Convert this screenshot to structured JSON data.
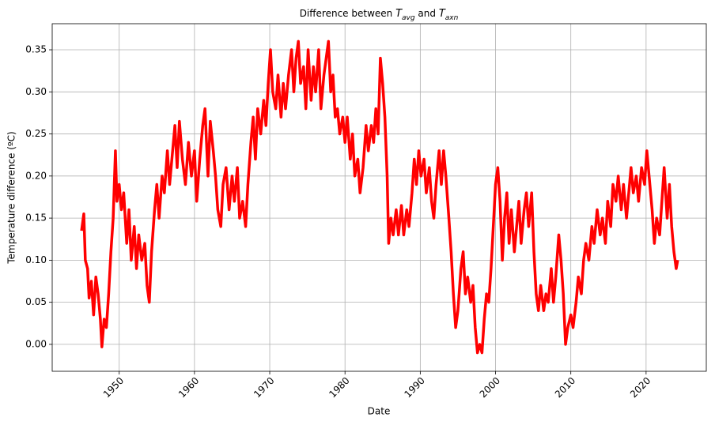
{
  "chart_data": {
    "type": "line",
    "title": [
      "Difference between ",
      {
        "text": "T",
        "sub": "avg"
      },
      " and ",
      {
        "text": "T",
        "sub": "axn"
      }
    ],
    "xlabel": "Date",
    "ylabel": "Temperature difference (ºC)",
    "color": "#ff0000",
    "grid": true,
    "xlim": [
      1941.1,
      2028.0
    ],
    "ylim": [
      -0.032,
      0.381
    ],
    "xticks": [
      1950,
      1960,
      1970,
      1980,
      1990,
      2000,
      2010,
      2020
    ],
    "yticks": [
      {
        "value": 0,
        "label": "0.00"
      },
      {
        "value": 0.05,
        "label": "0.05"
      },
      {
        "value": 0.1,
        "label": "0.10"
      },
      {
        "value": 0.15,
        "label": "0.15"
      },
      {
        "value": 0.2,
        "label": "0.20"
      },
      {
        "value": 0.25,
        "label": "0.25"
      },
      {
        "value": 0.3,
        "label": "0.30"
      },
      {
        "value": 0.35,
        "label": "0.35"
      }
    ],
    "x": [
      1945.0,
      1945.3,
      1945.5,
      1945.8,
      1946.0,
      1946.3,
      1946.6,
      1946.9,
      1947.2,
      1947.5,
      1947.7,
      1948.0,
      1948.3,
      1948.6,
      1948.9,
      1949.2,
      1949.5,
      1949.7,
      1950.0,
      1950.3,
      1950.6,
      1951.0,
      1951.3,
      1951.6,
      1952.0,
      1952.3,
      1952.6,
      1953.0,
      1953.4,
      1953.7,
      1954.0,
      1954.3,
      1954.7,
      1955.0,
      1955.3,
      1955.7,
      1956.0,
      1956.4,
      1956.7,
      1957.0,
      1957.4,
      1957.7,
      1958.0,
      1958.4,
      1958.8,
      1959.2,
      1959.6,
      1960.0,
      1960.3,
      1960.7,
      1961.1,
      1961.4,
      1961.8,
      1962.1,
      1962.5,
      1962.8,
      1963.1,
      1963.5,
      1963.8,
      1964.2,
      1964.6,
      1965.0,
      1965.3,
      1965.7,
      1966.0,
      1966.4,
      1966.8,
      1967.1,
      1967.5,
      1967.8,
      1968.1,
      1968.4,
      1968.8,
      1969.2,
      1969.5,
      1969.8,
      1970.1,
      1970.4,
      1970.8,
      1971.1,
      1971.5,
      1971.8,
      1972.1,
      1972.5,
      1972.9,
      1973.2,
      1973.5,
      1973.8,
      1974.1,
      1974.5,
      1974.8,
      1975.1,
      1975.5,
      1975.8,
      1976.1,
      1976.5,
      1976.8,
      1977.2,
      1977.5,
      1977.8,
      1978.1,
      1978.4,
      1978.7,
      1979.0,
      1979.3,
      1979.7,
      1980.0,
      1980.3,
      1980.7,
      1981.0,
      1981.3,
      1981.7,
      1982.0,
      1982.4,
      1982.8,
      1983.1,
      1983.5,
      1983.8,
      1984.1,
      1984.4,
      1984.7,
      1985.0,
      1985.3,
      1985.6,
      1985.8,
      1986.1,
      1986.4,
      1986.8,
      1987.1,
      1987.5,
      1987.8,
      1988.2,
      1988.5,
      1988.9,
      1989.2,
      1989.5,
      1989.8,
      1990.1,
      1990.5,
      1990.8,
      1991.2,
      1991.5,
      1991.8,
      1992.1,
      1992.5,
      1992.8,
      1993.1,
      1993.4,
      1993.8,
      1994.1,
      1994.4,
      1994.7,
      1995.0,
      1995.4,
      1995.7,
      1996.0,
      1996.3,
      1996.7,
      1997.0,
      1997.3,
      1997.6,
      1997.9,
      1998.2,
      1998.5,
      1998.8,
      1999.1,
      1999.4,
      1999.7,
      2000.0,
      2000.3,
      2000.6,
      2000.9,
      2001.2,
      2001.5,
      2001.8,
      2002.1,
      2002.5,
      2002.8,
      2003.1,
      2003.4,
      2003.8,
      2004.1,
      2004.4,
      2004.8,
      2005.1,
      2005.4,
      2005.7,
      2006.0,
      2006.4,
      2006.7,
      2007.0,
      2007.4,
      2007.7,
      2008.0,
      2008.4,
      2008.7,
      2009.0,
      2009.3,
      2009.6,
      2010.0,
      2010.3,
      2010.7,
      2011.0,
      2011.4,
      2011.7,
      2012.0,
      2012.4,
      2012.8,
      2013.1,
      2013.5,
      2013.9,
      2014.2,
      2014.6,
      2014.9,
      2015.3,
      2015.6,
      2016.0,
      2016.3,
      2016.7,
      2017.0,
      2017.4,
      2017.7,
      2018.0,
      2018.3,
      2018.7,
      2019.0,
      2019.4,
      2019.8,
      2020.1,
      2020.4,
      2020.8,
      2021.1,
      2021.4,
      2021.8,
      2022.1,
      2022.4,
      2022.8,
      2023.1,
      2023.4,
      2023.7,
      2024.0,
      2024.2
    ],
    "values": [
      0.135,
      0.155,
      0.1,
      0.09,
      0.055,
      0.075,
      0.035,
      0.08,
      0.06,
      0.03,
      -0.003,
      0.03,
      0.02,
      0.06,
      0.11,
      0.15,
      0.23,
      0.17,
      0.19,
      0.16,
      0.18,
      0.12,
      0.16,
      0.1,
      0.14,
      0.09,
      0.13,
      0.1,
      0.12,
      0.07,
      0.05,
      0.11,
      0.16,
      0.19,
      0.15,
      0.2,
      0.18,
      0.23,
      0.19,
      0.22,
      0.26,
      0.21,
      0.265,
      0.22,
      0.19,
      0.24,
      0.2,
      0.23,
      0.17,
      0.22,
      0.26,
      0.28,
      0.2,
      0.265,
      0.23,
      0.2,
      0.16,
      0.14,
      0.19,
      0.21,
      0.16,
      0.2,
      0.17,
      0.21,
      0.15,
      0.17,
      0.14,
      0.19,
      0.24,
      0.27,
      0.22,
      0.28,
      0.25,
      0.29,
      0.26,
      0.31,
      0.35,
      0.3,
      0.28,
      0.32,
      0.27,
      0.31,
      0.28,
      0.32,
      0.35,
      0.3,
      0.34,
      0.36,
      0.31,
      0.33,
      0.28,
      0.35,
      0.29,
      0.33,
      0.3,
      0.35,
      0.28,
      0.32,
      0.34,
      0.36,
      0.3,
      0.32,
      0.27,
      0.28,
      0.25,
      0.27,
      0.24,
      0.27,
      0.22,
      0.25,
      0.2,
      0.22,
      0.18,
      0.21,
      0.26,
      0.23,
      0.26,
      0.24,
      0.28,
      0.25,
      0.34,
      0.31,
      0.27,
      0.2,
      0.12,
      0.15,
      0.13,
      0.16,
      0.13,
      0.165,
      0.13,
      0.16,
      0.14,
      0.18,
      0.22,
      0.19,
      0.23,
      0.2,
      0.22,
      0.18,
      0.21,
      0.17,
      0.15,
      0.19,
      0.23,
      0.19,
      0.23,
      0.2,
      0.15,
      0.11,
      0.06,
      0.02,
      0.04,
      0.09,
      0.11,
      0.06,
      0.08,
      0.05,
      0.07,
      0.02,
      -0.01,
      0.0,
      -0.01,
      0.03,
      0.06,
      0.05,
      0.09,
      0.14,
      0.19,
      0.21,
      0.17,
      0.1,
      0.15,
      0.18,
      0.12,
      0.16,
      0.11,
      0.14,
      0.17,
      0.12,
      0.16,
      0.18,
      0.14,
      0.18,
      0.11,
      0.06,
      0.04,
      0.07,
      0.04,
      0.06,
      0.05,
      0.09,
      0.05,
      0.08,
      0.13,
      0.1,
      0.06,
      0.0,
      0.02,
      0.035,
      0.02,
      0.05,
      0.08,
      0.06,
      0.1,
      0.12,
      0.1,
      0.14,
      0.12,
      0.16,
      0.13,
      0.15,
      0.12,
      0.17,
      0.14,
      0.19,
      0.17,
      0.2,
      0.16,
      0.19,
      0.15,
      0.18,
      0.21,
      0.18,
      0.2,
      0.17,
      0.21,
      0.19,
      0.23,
      0.2,
      0.16,
      0.12,
      0.15,
      0.13,
      0.17,
      0.21,
      0.15,
      0.19,
      0.14,
      0.11,
      0.09,
      0.1
    ]
  }
}
